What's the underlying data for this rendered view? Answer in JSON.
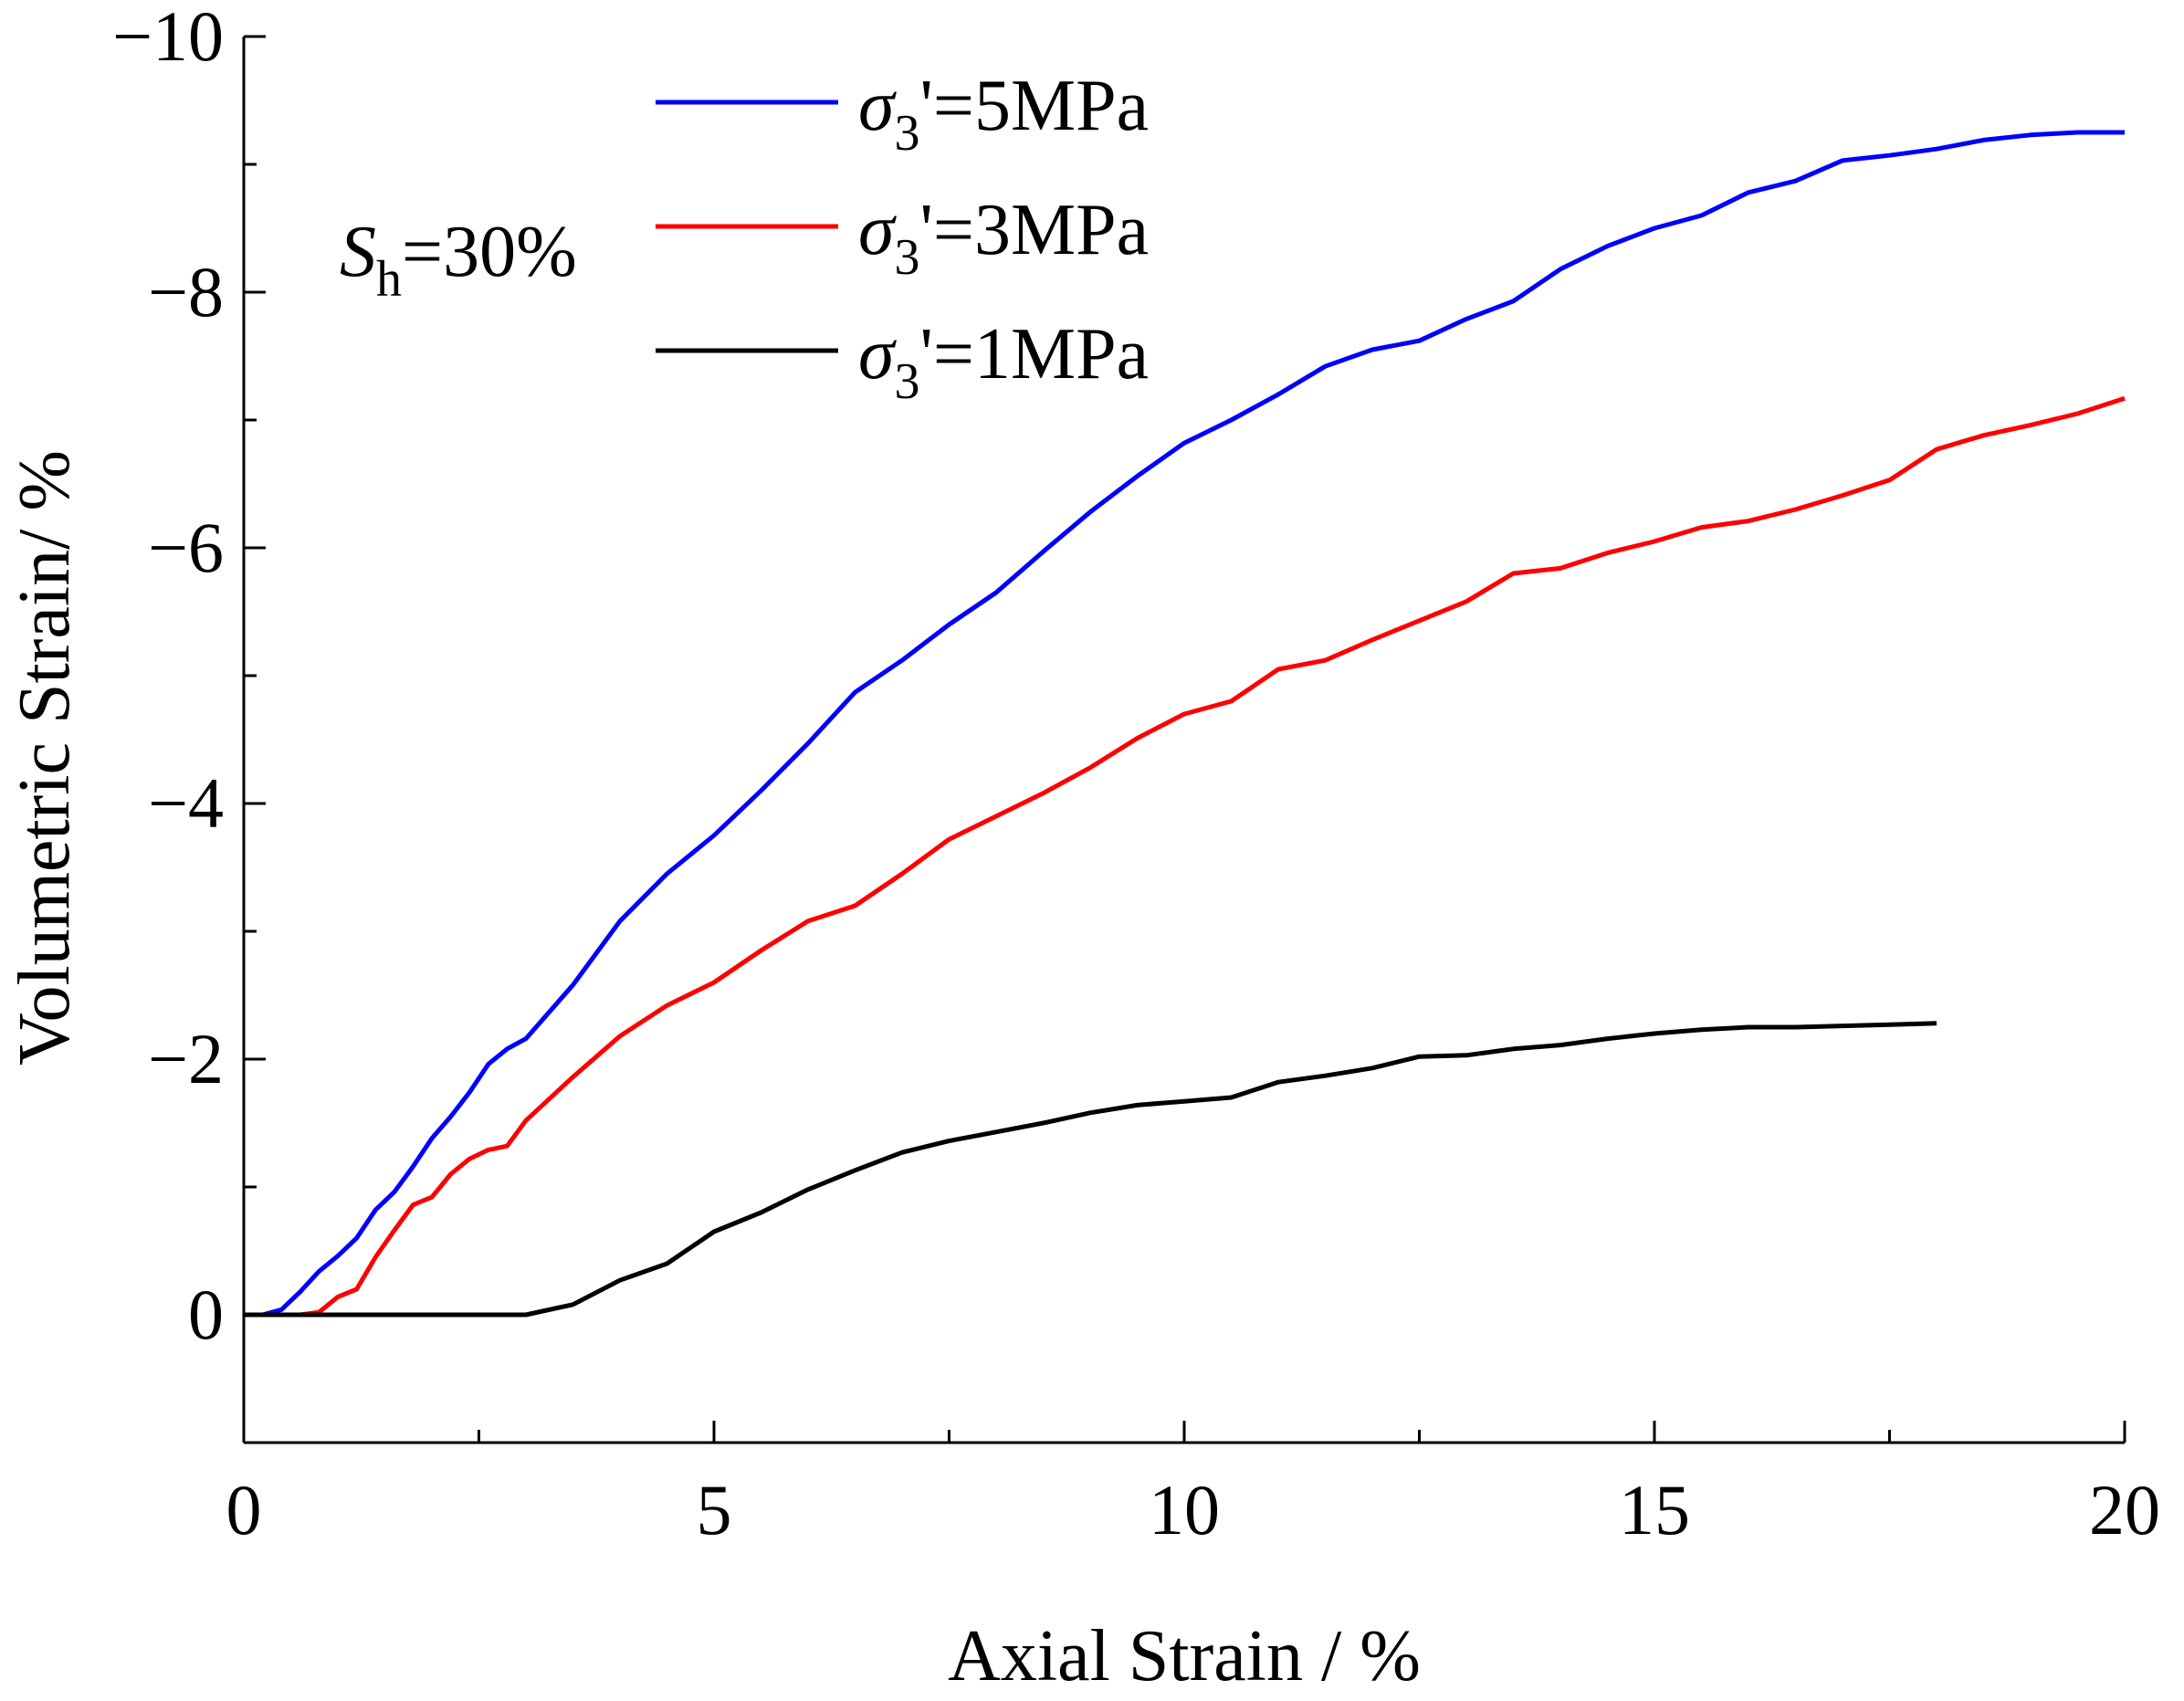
{
  "chart_data": {
    "type": "line",
    "title": "",
    "xlabel": "Axial Strain / %",
    "ylabel": "Volumetric Strain/ %",
    "xlim": [
      0,
      20
    ],
    "ylim": [
      1,
      -10
    ],
    "y_inverted": true,
    "x_ticks": [
      0,
      5,
      10,
      15,
      20
    ],
    "x_tick_labels": [
      "0",
      "5",
      "10",
      "15",
      "20"
    ],
    "y_ticks": [
      0,
      -2,
      -4,
      -6,
      -8,
      -10
    ],
    "y_tick_labels": [
      "0",
      "−2",
      "−4",
      "−6",
      "−8",
      "−10"
    ],
    "grid": false,
    "legend_position": "top-center",
    "annotation": {
      "symbol": "S",
      "subscript": "h",
      "text": "=30%"
    },
    "series": [
      {
        "name": "σ3'=5MPa",
        "legend": {
          "symbol": "σ",
          "subscript": "3",
          "text": "'=5MPa"
        },
        "color": "#0000ff",
        "points": [
          [
            0,
            0
          ],
          [
            0.2,
            0
          ],
          [
            0.4,
            -0.04
          ],
          [
            0.6,
            -0.18
          ],
          [
            0.8,
            -0.34
          ],
          [
            1.0,
            -0.46
          ],
          [
            1.2,
            -0.6
          ],
          [
            1.4,
            -0.82
          ],
          [
            1.6,
            -0.96
          ],
          [
            1.8,
            -1.16
          ],
          [
            2.0,
            -1.38
          ],
          [
            2.2,
            -1.55
          ],
          [
            2.4,
            -1.74
          ],
          [
            2.6,
            -1.96
          ],
          [
            2.8,
            -2.08
          ],
          [
            3.0,
            -2.16
          ],
          [
            3.5,
            -2.58
          ],
          [
            4.0,
            -3.08
          ],
          [
            4.5,
            -3.45
          ],
          [
            5.0,
            -3.75
          ],
          [
            5.5,
            -4.1
          ],
          [
            6.0,
            -4.47
          ],
          [
            6.5,
            -4.87
          ],
          [
            7.0,
            -5.12
          ],
          [
            7.5,
            -5.4
          ],
          [
            8.0,
            -5.65
          ],
          [
            8.5,
            -5.97
          ],
          [
            9.0,
            -6.28
          ],
          [
            9.5,
            -6.56
          ],
          [
            10.0,
            -6.82
          ],
          [
            10.5,
            -7.0
          ],
          [
            11.0,
            -7.2
          ],
          [
            11.5,
            -7.42
          ],
          [
            12.0,
            -7.55
          ],
          [
            12.5,
            -7.62
          ],
          [
            13.0,
            -7.79
          ],
          [
            13.5,
            -7.93
          ],
          [
            14.0,
            -8.18
          ],
          [
            14.5,
            -8.36
          ],
          [
            15.0,
            -8.5
          ],
          [
            15.5,
            -8.6
          ],
          [
            16.0,
            -8.78
          ],
          [
            16.5,
            -8.87
          ],
          [
            17.0,
            -9.03
          ],
          [
            17.5,
            -9.07
          ],
          [
            18.0,
            -9.12
          ],
          [
            18.5,
            -9.19
          ],
          [
            19.0,
            -9.23
          ],
          [
            19.5,
            -9.25
          ],
          [
            20.0,
            -9.25
          ]
        ]
      },
      {
        "name": "σ3'=3MPa",
        "legend": {
          "symbol": "σ",
          "subscript": "3",
          "text": "'=3MPa"
        },
        "color": "#ff0000",
        "points": [
          [
            0,
            0
          ],
          [
            0.4,
            0
          ],
          [
            0.6,
            0
          ],
          [
            0.8,
            -0.02
          ],
          [
            1.0,
            -0.14
          ],
          [
            1.2,
            -0.2
          ],
          [
            1.4,
            -0.45
          ],
          [
            1.6,
            -0.66
          ],
          [
            1.8,
            -0.86
          ],
          [
            2.0,
            -0.92
          ],
          [
            2.2,
            -1.1
          ],
          [
            2.4,
            -1.22
          ],
          [
            2.6,
            -1.29
          ],
          [
            2.8,
            -1.32
          ],
          [
            3.0,
            -1.52
          ],
          [
            3.5,
            -1.86
          ],
          [
            4.0,
            -2.18
          ],
          [
            4.5,
            -2.42
          ],
          [
            5.0,
            -2.6
          ],
          [
            5.5,
            -2.85
          ],
          [
            6.0,
            -3.08
          ],
          [
            6.5,
            -3.2
          ],
          [
            7.0,
            -3.45
          ],
          [
            7.5,
            -3.72
          ],
          [
            8.0,
            -3.9
          ],
          [
            8.5,
            -4.08
          ],
          [
            9.0,
            -4.28
          ],
          [
            9.5,
            -4.51
          ],
          [
            10.0,
            -4.7
          ],
          [
            10.5,
            -4.8
          ],
          [
            11.0,
            -5.05
          ],
          [
            11.5,
            -5.12
          ],
          [
            12.0,
            -5.28
          ],
          [
            12.5,
            -5.43
          ],
          [
            13.0,
            -5.58
          ],
          [
            13.5,
            -5.8
          ],
          [
            14.0,
            -5.84
          ],
          [
            14.5,
            -5.96
          ],
          [
            15.0,
            -6.05
          ],
          [
            15.5,
            -6.16
          ],
          [
            16.0,
            -6.21
          ],
          [
            16.5,
            -6.3
          ],
          [
            17.0,
            -6.41
          ],
          [
            17.5,
            -6.53
          ],
          [
            18.0,
            -6.77
          ],
          [
            18.5,
            -6.88
          ],
          [
            19.0,
            -6.96
          ],
          [
            19.5,
            -7.05
          ],
          [
            20.0,
            -7.17
          ]
        ]
      },
      {
        "name": "σ3'=1MPa",
        "legend": {
          "symbol": "σ",
          "subscript": "3",
          "text": "'=1MPa"
        },
        "color": "#000000",
        "points": [
          [
            0,
            0
          ],
          [
            1.0,
            0
          ],
          [
            2.0,
            0
          ],
          [
            3.0,
            0
          ],
          [
            3.5,
            -0.08
          ],
          [
            4.0,
            -0.27
          ],
          [
            4.5,
            -0.4
          ],
          [
            5.0,
            -0.65
          ],
          [
            5.5,
            -0.8
          ],
          [
            6.0,
            -0.98
          ],
          [
            6.5,
            -1.13
          ],
          [
            7.0,
            -1.27
          ],
          [
            7.5,
            -1.36
          ],
          [
            8.0,
            -1.43
          ],
          [
            8.5,
            -1.5
          ],
          [
            9.0,
            -1.58
          ],
          [
            9.5,
            -1.64
          ],
          [
            10.0,
            -1.67
          ],
          [
            10.5,
            -1.7
          ],
          [
            11.0,
            -1.82
          ],
          [
            11.5,
            -1.87
          ],
          [
            12.0,
            -1.93
          ],
          [
            12.5,
            -2.02
          ],
          [
            13.0,
            -2.03
          ],
          [
            13.5,
            -2.08
          ],
          [
            14.0,
            -2.11
          ],
          [
            14.5,
            -2.16
          ],
          [
            15.0,
            -2.2
          ],
          [
            15.5,
            -2.23
          ],
          [
            16.0,
            -2.25
          ],
          [
            16.5,
            -2.25
          ],
          [
            17.0,
            -2.26
          ],
          [
            17.5,
            -2.27
          ],
          [
            18.0,
            -2.28
          ]
        ]
      }
    ]
  }
}
